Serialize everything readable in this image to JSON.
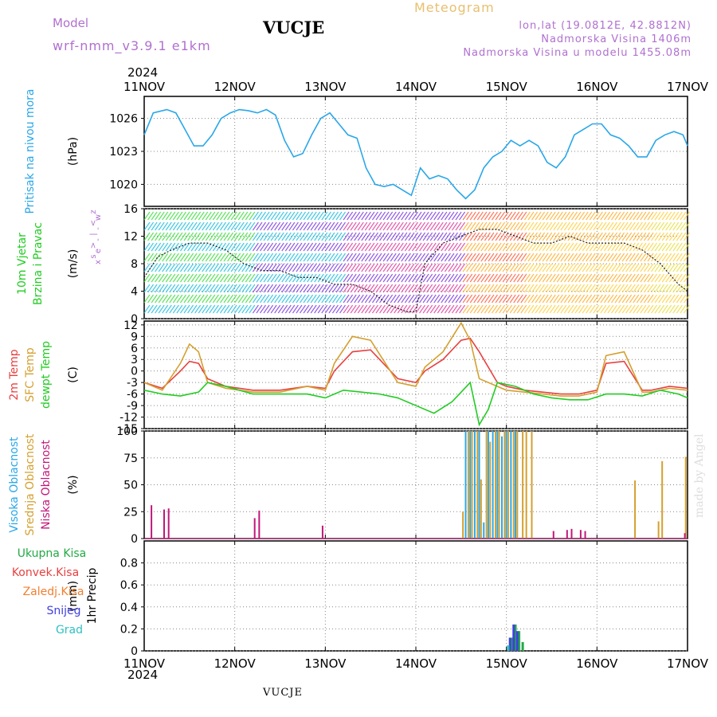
{
  "header": {
    "model_label": "Model",
    "model_name": "wrf-nmm_v3.9.1  e1km",
    "station": "VUCJE",
    "meteogram_title": "Meteogram",
    "lonlat": "lon,lat (19.0812E, 42.8812N)",
    "altitude": "Nadmorska Visina 1406m",
    "model_altitude": "Nadmorska Visina u modelu 1455.08m",
    "year_top": "2024",
    "year_bottom": "2024",
    "footer_station": "VUCJE",
    "credit": "made by Angel"
  },
  "colors": {
    "pressure": "#2aa7e8",
    "temp2m": "#e84040",
    "sfc_temp": "#d4a030",
    "dewpoint": "#22cc22",
    "cloud_high": "#2aa7e8",
    "cloud_mid": "#d4a030",
    "cloud_low": "#c0187a",
    "precip_total": "#22aa44",
    "precip_conv": "#e84040",
    "precip_frz": "#f08030",
    "precip_snow": "#4040e0",
    "precip_graupel": "#30c0c0",
    "wind_axis_label": "#b070d0"
  },
  "chart_data": [
    {
      "type": "line",
      "panel": "pressure",
      "x_tick_labels": [
        "11NOV",
        "12NOV",
        "13NOV",
        "14NOV",
        "15NOV",
        "16NOV",
        "17NOV"
      ],
      "ylabel_lines": [
        "Pritisak na nivou mora"
      ],
      "unit": "(hPa)",
      "ylim": [
        1018,
        1028
      ],
      "y_ticks": [
        1020,
        1023,
        1026
      ],
      "series": [
        {
          "color_key": "pressure",
          "x": [
            0,
            0.1,
            0.25,
            0.35,
            0.45,
            0.55,
            0.65,
            0.75,
            0.85,
            0.95,
            1.05,
            1.15,
            1.25,
            1.35,
            1.45,
            1.55,
            1.65,
            1.75,
            1.85,
            1.95,
            2.05,
            2.15,
            2.25,
            2.35,
            2.45,
            2.55,
            2.65,
            2.75,
            2.85,
            2.95,
            3.05,
            3.15,
            3.25,
            3.35,
            3.45,
            3.55,
            3.65,
            3.75,
            3.85,
            3.95,
            4.05,
            4.15,
            4.25,
            4.35,
            4.45,
            4.55,
            4.65,
            4.75,
            4.85,
            4.95,
            5.05,
            5.15,
            5.25,
            5.35,
            5.45,
            5.55,
            5.65,
            5.75,
            5.85,
            5.95,
            6.0
          ],
          "y": [
            1024.5,
            1026.5,
            1026.8,
            1026.5,
            1025,
            1023.5,
            1023.5,
            1024.5,
            1026,
            1026.5,
            1026.8,
            1026.7,
            1026.5,
            1026.8,
            1026.3,
            1024,
            1022.5,
            1022.8,
            1024.5,
            1026,
            1026.5,
            1025.5,
            1024.5,
            1024.2,
            1021.5,
            1020,
            1019.8,
            1020,
            1019.5,
            1019,
            1021.5,
            1020.5,
            1020.8,
            1020.5,
            1019.5,
            1018.7,
            1019.5,
            1021.5,
            1022.5,
            1023,
            1024,
            1023.5,
            1024,
            1023.5,
            1022,
            1021.5,
            1022.5,
            1024.5,
            1025,
            1025.5,
            1025.5,
            1024.5,
            1024.2,
            1023.5,
            1022.5,
            1022.5,
            1024,
            1024.5,
            1024.8,
            1024.5,
            1023.5
          ]
        }
      ]
    },
    {
      "type": "line",
      "panel": "wind",
      "ylabel_lines": [
        "10m Vjetar",
        "Brzina i Pravac"
      ],
      "unit": "(m/s)",
      "direction_legend": [
        "z",
        "w",
        "<",
        "-",
        "|",
        "-",
        ">",
        "e",
        "s",
        "x"
      ],
      "ylim": [
        0,
        16
      ],
      "y_ticks": [
        0,
        4,
        8,
        12,
        16
      ],
      "series": [
        {
          "name_key": "wind_speed",
          "x": [
            0,
            0.15,
            0.3,
            0.5,
            0.7,
            0.9,
            1.1,
            1.3,
            1.5,
            1.7,
            1.9,
            2.1,
            2.3,
            2.5,
            2.7,
            2.9,
            3.0,
            3.1,
            3.3,
            3.5,
            3.7,
            3.9,
            4.1,
            4.3,
            4.5,
            4.7,
            4.9,
            5.1,
            5.3,
            5.5,
            5.7,
            5.9,
            6.0
          ],
          "y": [
            6,
            9,
            10,
            11,
            11,
            10,
            8,
            7,
            7,
            6,
            6,
            5,
            5,
            4,
            2,
            1,
            1,
            8,
            11,
            12,
            13,
            13,
            12,
            11,
            11,
            12,
            11,
            11,
            11,
            10,
            8,
            5,
            4
          ]
        }
      ]
    },
    {
      "type": "line",
      "panel": "temperature",
      "ylabel_lines": [
        "2m Temp",
        "SFC Temp",
        "dewpt Temp"
      ],
      "unit": "(C)",
      "ylim": [
        -15,
        13
      ],
      "y_ticks": [
        -15,
        -12,
        -9,
        -6,
        -3,
        0,
        3,
        6,
        9,
        12
      ],
      "series": [
        {
          "name": "2m Temp",
          "color_key": "temp2m",
          "x": [
            0,
            0.2,
            0.4,
            0.5,
            0.6,
            0.7,
            0.9,
            1.2,
            1.5,
            1.8,
            2.0,
            2.1,
            2.3,
            2.5,
            2.8,
            3.0,
            3.1,
            3.3,
            3.5,
            3.6,
            3.7,
            3.9,
            4.0,
            4.2,
            4.4,
            4.6,
            4.8,
            5.0,
            5.1,
            5.3,
            5.5,
            5.6,
            5.8,
            6.0
          ],
          "y": [
            -3,
            -4.5,
            0,
            2.5,
            2,
            -2,
            -4,
            -5,
            -5,
            -4,
            -4.5,
            0,
            5,
            5.5,
            -2,
            -3,
            0,
            3,
            8,
            8.5,
            5,
            -3,
            -4,
            -5,
            -5.5,
            -6,
            -6,
            -5,
            2,
            2.5,
            -5,
            -5,
            -4,
            -4.5
          ]
        },
        {
          "name": "SFC Temp",
          "color_key": "sfc_temp",
          "x": [
            0,
            0.2,
            0.4,
            0.5,
            0.6,
            0.7,
            0.9,
            1.2,
            1.5,
            1.8,
            2.0,
            2.1,
            2.3,
            2.5,
            2.8,
            3.0,
            3.1,
            3.3,
            3.5,
            3.6,
            3.7,
            3.9,
            4.0,
            4.2,
            4.4,
            4.6,
            4.8,
            5.0,
            5.1,
            5.3,
            5.5,
            5.6,
            5.8,
            6.0
          ],
          "y": [
            -3,
            -5,
            2,
            7,
            5,
            -3,
            -4.5,
            -5.5,
            -5.5,
            -4,
            -5,
            2,
            9,
            8,
            -3,
            -4,
            1,
            5,
            12.5,
            8,
            -2,
            -4,
            -5,
            -5.5,
            -6,
            -6.5,
            -6.5,
            -5.5,
            4,
            5,
            -5.5,
            -5.5,
            -4.5,
            -5
          ]
        },
        {
          "name": "dewpt Temp",
          "color_key": "dewpoint",
          "x": [
            0,
            0.2,
            0.4,
            0.6,
            0.7,
            0.9,
            1.2,
            1.5,
            1.8,
            2.0,
            2.2,
            2.4,
            2.6,
            2.8,
            3.0,
            3.2,
            3.4,
            3.6,
            3.7,
            3.8,
            3.9,
            4.1,
            4.3,
            4.5,
            4.7,
            4.9,
            5.1,
            5.3,
            5.5,
            5.7,
            5.9,
            6.0
          ],
          "y": [
            -5,
            -6,
            -6.5,
            -5.5,
            -3,
            -4,
            -6,
            -6,
            -6,
            -7,
            -5,
            -5.5,
            -6,
            -7,
            -9,
            -11,
            -8,
            -3,
            -14,
            -10,
            -3,
            -4,
            -6,
            -7,
            -7.5,
            -7.5,
            -6,
            -6,
            -6.5,
            -5,
            -6,
            -7
          ]
        }
      ]
    },
    {
      "type": "bar",
      "panel": "clouds",
      "ylabel_lines": [
        "Visoka Oblacnost",
        "Srednja Oblacnost",
        "Niska Oblacnost"
      ],
      "unit": "(%)",
      "ylim": [
        0,
        100
      ],
      "y_ticks": [
        0,
        25,
        50,
        75,
        100
      ],
      "series": [
        {
          "name": "Visoka Oblacnost",
          "color_key": "cloud_high",
          "x": [
            3.55,
            3.6,
            3.65,
            3.7,
            3.75,
            3.8,
            3.85,
            3.9,
            3.95,
            4.0,
            4.05,
            4.1
          ],
          "values": [
            100,
            100,
            100,
            100,
            15,
            100,
            100,
            100,
            95,
            100,
            100,
            100
          ]
        },
        {
          "name": "Srednja Oblacnost",
          "color_key": "cloud_mid",
          "x": [
            3.52,
            3.58,
            3.62,
            3.68,
            3.72,
            3.78,
            3.82,
            3.88,
            3.92,
            3.98,
            4.02,
            4.08,
            4.12,
            4.18,
            4.22,
            4.28,
            5.42,
            5.68,
            5.72,
            5.98,
            6.62
          ],
          "values": [
            25,
            100,
            100,
            100,
            55,
            100,
            90,
            100,
            100,
            100,
            100,
            100,
            100,
            100,
            100,
            100,
            54,
            16,
            72,
            76,
            17
          ]
        },
        {
          "name": "Niska Oblacnost",
          "color_key": "cloud_low",
          "x": [
            0.08,
            0.22,
            0.27,
            1.22,
            1.27,
            1.97,
            4.52,
            4.67,
            4.72,
            4.82,
            4.87,
            5.97,
            6.87
          ],
          "values": [
            31,
            27,
            28,
            19,
            26,
            12,
            7,
            8,
            9,
            8,
            7,
            5,
            8
          ]
        }
      ]
    },
    {
      "type": "bar",
      "panel": "precip",
      "ylabel_lines": [
        "1hr Precip"
      ],
      "unit": "(mm)",
      "legend": [
        "Ukupna Kisa",
        "Konvek.Kisa",
        "Zaledj.Kisa",
        "Snijeg",
        "Grad"
      ],
      "ylim": [
        0,
        1
      ],
      "y_ticks": [
        0,
        0.2,
        0.4,
        0.6,
        0.8
      ],
      "series": [
        {
          "name": "Ukupna Kisa",
          "color_key": "precip_total",
          "x": [
            4.06,
            4.1,
            4.14,
            4.18
          ],
          "values": [
            0.12,
            0.24,
            0.18,
            0.08
          ]
        },
        {
          "name": "Snijeg",
          "color_key": "precip_snow",
          "x": [
            4.04,
            4.08,
            4.12
          ],
          "values": [
            0.12,
            0.24,
            0.18
          ]
        },
        {
          "name": "Grad",
          "color_key": "precip_graupel",
          "x": [
            4.02
          ],
          "values": [
            0.05
          ]
        }
      ]
    }
  ]
}
